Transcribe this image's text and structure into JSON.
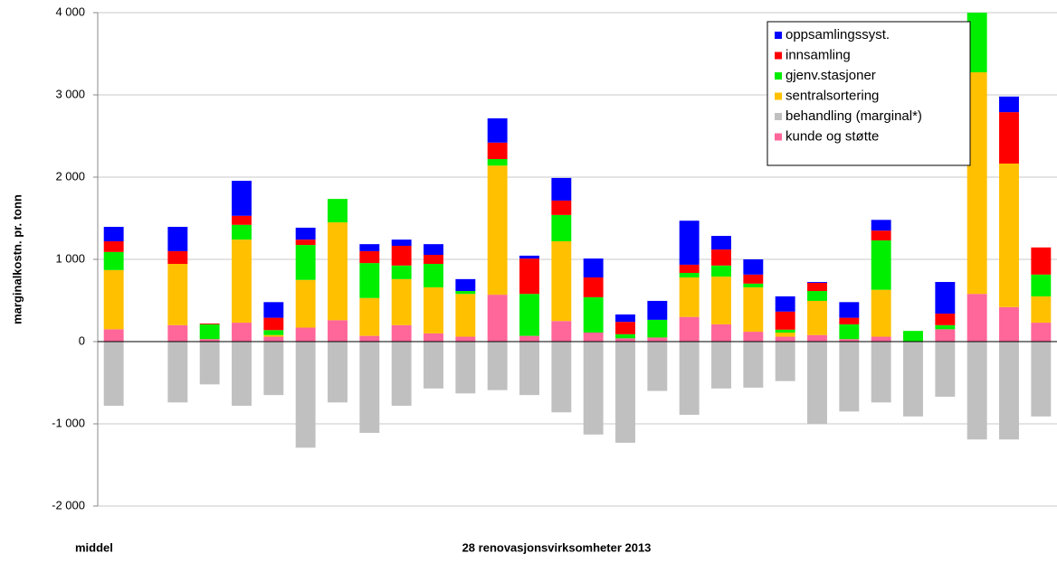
{
  "chart_data": {
    "type": "stacked-bar",
    "y_label": "marginalkostn. pr. tonn",
    "x_label": "28 renovasjonsvirksomheter 2013",
    "annotation": "middel",
    "categories": [
      null,
      null,
      null,
      null,
      null,
      null,
      null,
      null,
      null,
      null,
      null,
      null,
      null,
      null,
      null,
      null,
      null,
      null,
      null,
      null,
      null,
      null,
      null,
      null,
      null,
      null,
      null,
      null,
      null,
      null
    ],
    "series": [
      {
        "name": "oppsamlingssyst.",
        "color": "#0000ff",
        "values": [
          175,
          null,
          295,
          0,
          425,
          190,
          145,
          0,
          85,
          75,
          130,
          145,
          295,
          35,
          275,
          230,
          90,
          230,
          535,
          165,
          185,
          185,
          10,
          190,
          130,
          0,
          385,
          0,
          190,
          0
        ]
      },
      {
        "name": "innsamling",
        "color": "#ff0000",
        "values": [
          130,
          null,
          155,
          10,
          110,
          150,
          65,
          0,
          145,
          240,
          110,
          0,
          200,
          430,
          175,
          240,
          150,
          0,
          100,
          195,
          110,
          220,
          100,
          80,
          120,
          0,
          140,
          0,
          625,
          330
        ]
      },
      {
        "name": "gjenv.stasjoner",
        "color": "#00ee00",
        "values": [
          220,
          null,
          0,
          180,
          180,
          60,
          425,
          285,
          425,
          165,
          285,
          35,
          80,
          510,
          320,
          430,
          50,
          215,
          55,
          135,
          45,
          35,
          120,
          180,
          600,
          130,
          50,
          740,
          0,
          265
        ]
      },
      {
        "name": "sentralsortering",
        "color": "#ffc000",
        "values": [
          720,
          null,
          745,
          0,
          1010,
          20,
          580,
          1190,
          460,
          560,
          560,
          520,
          1570,
          0,
          970,
          0,
          0,
          0,
          480,
          580,
          540,
          50,
          415,
          0,
          570,
          0,
          0,
          2695,
          1745,
          320
        ]
      },
      {
        "name": "behandling (marginal*)",
        "color": "#c0c0c0",
        "values": [
          -780,
          null,
          -740,
          -520,
          -780,
          -650,
          -1290,
          -740,
          -1110,
          -780,
          -570,
          -630,
          -590,
          -650,
          -860,
          -1130,
          -1230,
          -600,
          -890,
          -570,
          -560,
          -480,
          -1000,
          -850,
          -740,
          -910,
          -670,
          -1190,
          -1190,
          -910
        ]
      },
      {
        "name": "kunde og støtte",
        "color": "#ff6699",
        "values": [
          150,
          null,
          200,
          30,
          230,
          60,
          170,
          260,
          70,
          200,
          100,
          60,
          570,
          70,
          250,
          110,
          40,
          50,
          300,
          210,
          120,
          60,
          80,
          30,
          60,
          0,
          150,
          580,
          420,
          230
        ]
      }
    ],
    "ylim": [
      -2000,
      4000
    ],
    "yticks": [
      {
        "value": -2000,
        "label": "-2 000"
      },
      {
        "value": -1000,
        "label": "-1 000"
      },
      0,
      {
        "value": 1000,
        "label": "1 000"
      },
      {
        "value": 2000,
        "label": "2 000"
      },
      {
        "value": 3000,
        "label": "3 000"
      },
      {
        "value": 4000,
        "label": "4 000"
      }
    ],
    "grid": true,
    "legend": "top-right"
  }
}
